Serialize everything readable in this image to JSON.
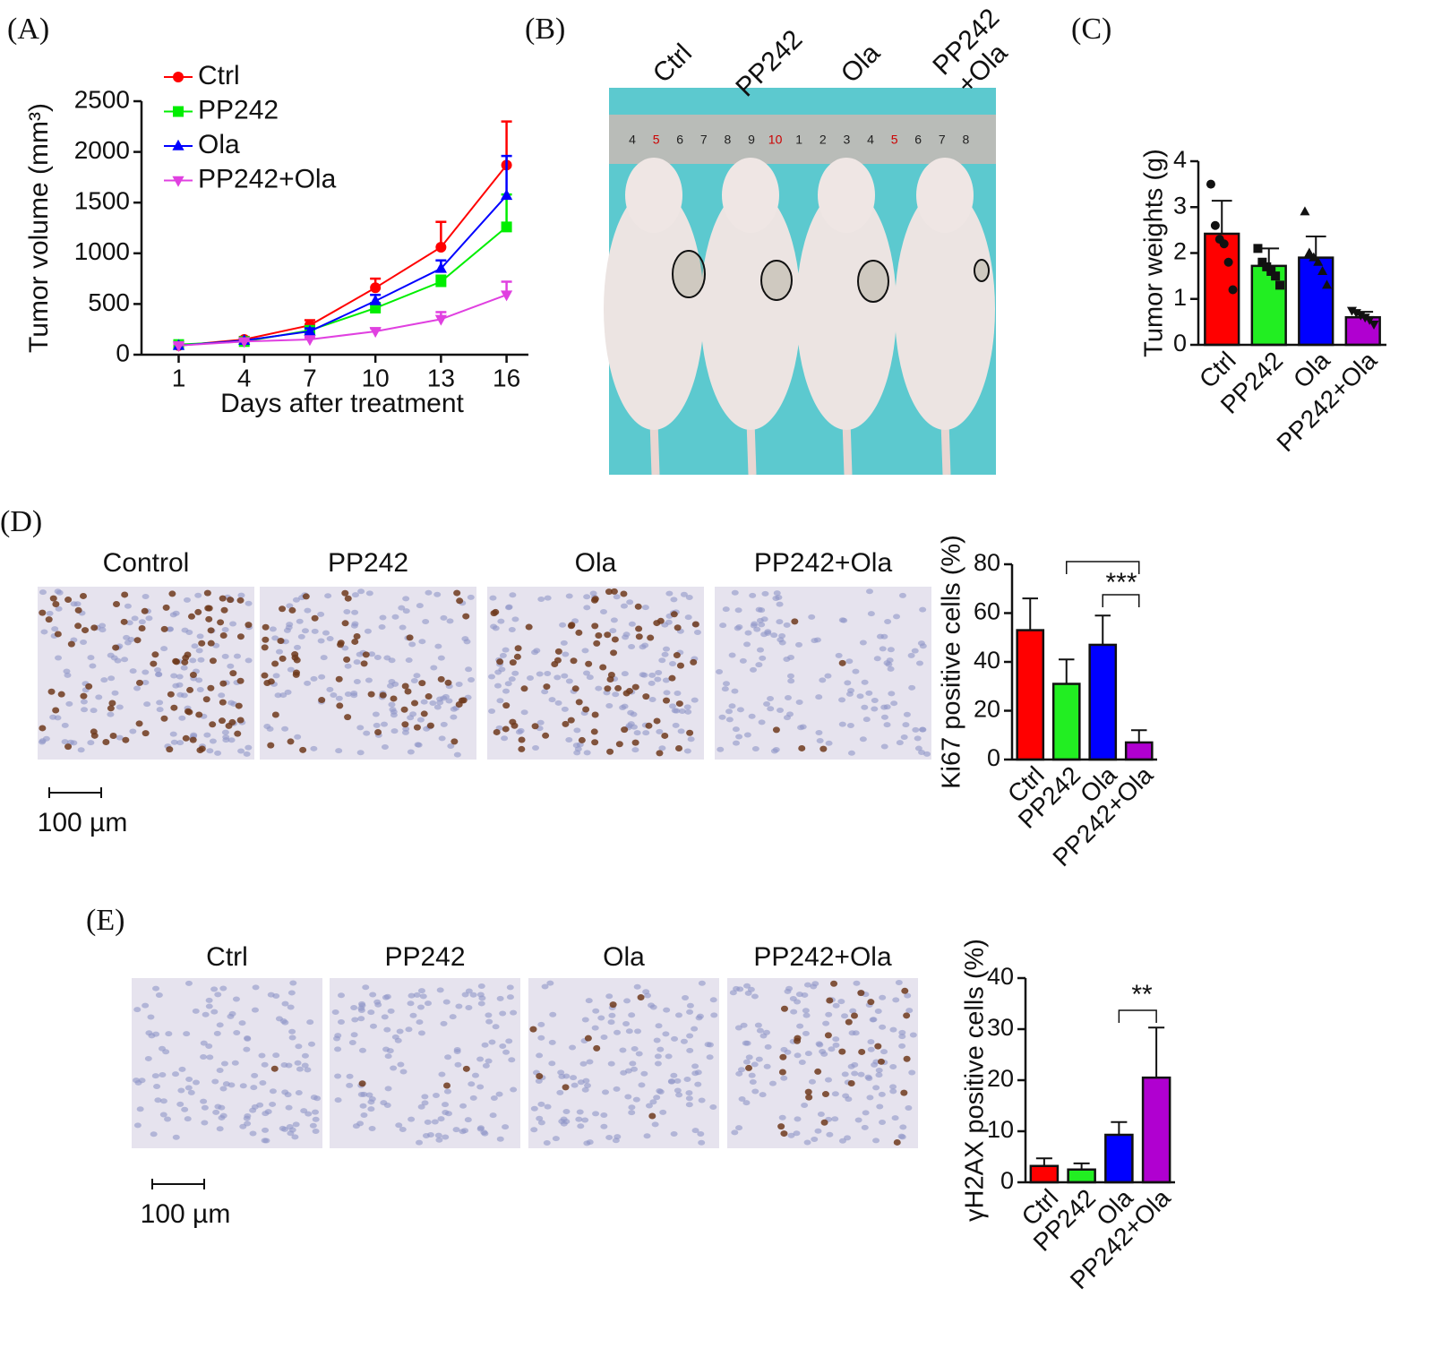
{
  "panel_labels": [
    "(A)",
    "(B)",
    "(C)",
    "(D)",
    "(E)"
  ],
  "photo": {
    "labels": [
      [
        "Ctrl"
      ],
      [
        "PP242"
      ],
      [
        "Ola"
      ],
      [
        "PP242",
        "+Ola"
      ]
    ],
    "ruler": [
      "4",
      "5",
      "6",
      "7",
      "8",
      "9",
      "10",
      "1",
      "2",
      "3",
      "4",
      "5",
      "6",
      "7",
      "8"
    ]
  },
  "ihc_d": {
    "labels": [
      "Control",
      "PP242",
      "Ola",
      "PP242+Ola"
    ],
    "scale_bar": "100 µm"
  },
  "ihc_e": {
    "labels": [
      "Ctrl",
      "PP242",
      "Ola",
      "PP242+Ola"
    ],
    "scale_bar": "100 µm"
  },
  "chart_data": [
    {
      "type": "line",
      "y_label": "Tumor volume (mm³)",
      "x_label": "Days after treatment",
      "x": [
        1,
        4,
        7,
        10,
        13,
        16
      ],
      "xlim": [
        -0.7,
        17
      ],
      "xticks": [
        1,
        4,
        7,
        10,
        13,
        16
      ],
      "ylim": [
        0,
        2500
      ],
      "yticks": [
        0,
        500,
        1000,
        1500,
        2000,
        2500
      ],
      "legend": "upper-left",
      "series": [
        {
          "name": "Ctrl",
          "color": "#ff0000",
          "marker": "circle",
          "values": [
            90,
            150,
            290,
            660,
            1060,
            1870
          ],
          "errors": [
            20,
            25,
            50,
            90,
            250,
            430
          ]
        },
        {
          "name": "PP242",
          "color": "#00ee00",
          "marker": "square",
          "values": [
            100,
            130,
            240,
            460,
            720,
            1260
          ],
          "errors": [
            20,
            20,
            30,
            50,
            60,
            320
          ]
        },
        {
          "name": "Ola",
          "color": "#0000ff",
          "marker": "triangle",
          "values": [
            90,
            140,
            230,
            530,
            850,
            1570
          ],
          "errors": [
            20,
            20,
            30,
            60,
            80,
            390
          ]
        },
        {
          "name": "PP242+Ola",
          "color": "#e040e0",
          "marker": "triangle-down",
          "values": [
            90,
            130,
            150,
            230,
            350,
            590
          ],
          "errors": [
            15,
            15,
            20,
            30,
            70,
            130
          ]
        }
      ]
    },
    {
      "type": "bar",
      "y_label": "Tumor weights (g)",
      "categories": [
        "Ctrl",
        "PP242",
        "Ola",
        "PP242+Ola"
      ],
      "colors": [
        "#ff0000",
        "#22ee22",
        "#0000ff",
        "#b000d0"
      ],
      "values": [
        2.42,
        1.72,
        1.9,
        0.6
      ],
      "errors": [
        0.72,
        0.38,
        0.46,
        0.12
      ],
      "points": [
        [
          3.5,
          2.6,
          2.3,
          2.2,
          1.8,
          1.2
        ],
        [
          2.1,
          1.8,
          1.7,
          1.6,
          1.5,
          1.3
        ],
        [
          2.9,
          2.0,
          1.9,
          1.8,
          1.6,
          1.3
        ],
        [
          0.75,
          0.7,
          0.65,
          0.6,
          0.55,
          0.45
        ]
      ],
      "point_markers": [
        "circle",
        "square",
        "triangle",
        "triangle-down"
      ],
      "ylim": [
        0,
        4
      ],
      "yticks": [
        0,
        1,
        2,
        3,
        4
      ]
    },
    {
      "type": "bar",
      "y_label": "Ki67 positive cells (%)",
      "categories": [
        "Ctrl",
        "PP242",
        "Ola",
        "PP242+Ola"
      ],
      "colors": [
        "#ff0000",
        "#22ee22",
        "#0000ff",
        "#b000d0"
      ],
      "values": [
        53,
        31,
        47,
        7
      ],
      "errors": [
        13,
        10,
        12,
        5
      ],
      "ylim": [
        0,
        80
      ],
      "yticks": [
        0,
        20,
        40,
        60,
        80
      ],
      "annotations": [
        "***"
      ]
    },
    {
      "type": "bar",
      "y_label": "γH2AX positive cells (%)",
      "categories": [
        "Ctrl",
        "PP242",
        "Ola",
        "PP242+Ola"
      ],
      "colors": [
        "#ff0000",
        "#22ee22",
        "#0000ff",
        "#b000d0"
      ],
      "values": [
        3.2,
        2.5,
        9.3,
        20.5
      ],
      "errors": [
        1.5,
        1.2,
        2.5,
        9.8
      ],
      "ylim": [
        0,
        40
      ],
      "yticks": [
        0,
        10,
        20,
        30,
        40
      ],
      "annotations": [
        "**"
      ]
    }
  ]
}
